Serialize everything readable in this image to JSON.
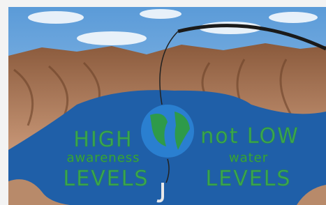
{
  "painting": {
    "left_text": [
      "HIGH",
      "awareness",
      "LEVELS"
    ],
    "right_text": [
      "not LOW",
      "water",
      "LEVELS"
    ]
  }
}
